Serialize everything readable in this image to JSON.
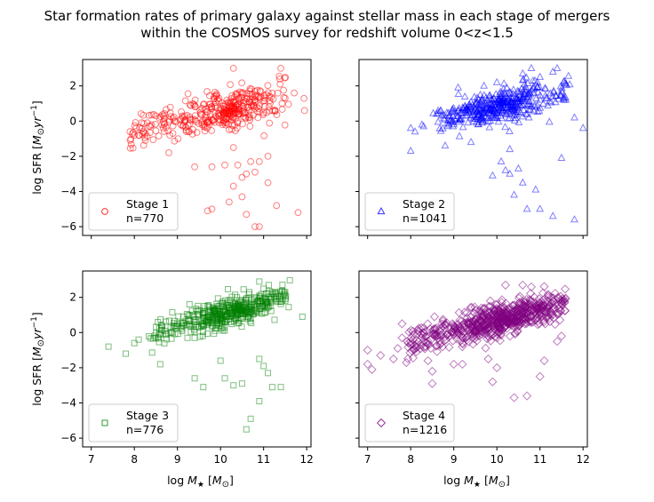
{
  "figure": {
    "title_line1": "Star formation rates of primary galaxy against stellar mass in each stage of mergers",
    "title_line2": "within the COSMOS survey for redshift volume 0<z<1.5"
  },
  "chart_data": [
    {
      "type": "scatter",
      "marker": "circle",
      "color": "#ff0000",
      "legend": {
        "label": "Stage 1",
        "count": "n=770",
        "placement": "lower-left"
      },
      "ylabel": "log SFR [M⊙yr⁻¹]",
      "xlabel": "",
      "xlim": [
        6.8,
        12.1
      ],
      "ylim": [
        -6.5,
        3.5
      ],
      "xticks": [
        7,
        8,
        9,
        10,
        11,
        12
      ],
      "yticks": [
        2,
        0,
        -2,
        -4,
        -6
      ],
      "cloud": {
        "n": 380,
        "x_range": [
          7.9,
          11.5
        ],
        "y_at_x8": -0.6,
        "slope": 0.55,
        "x_center": 10.3,
        "spread": 0.9
      },
      "outliers": [
        [
          9.8,
          -5.0
        ],
        [
          9.7,
          -5.1
        ],
        [
          10.6,
          -5.3
        ],
        [
          10.8,
          -6.0
        ],
        [
          10.9,
          -6.0
        ],
        [
          11.3,
          -4.8
        ],
        [
          11.8,
          -5.2
        ],
        [
          10.2,
          -4.6
        ],
        [
          10.6,
          -3.0
        ],
        [
          10.8,
          -2.9
        ],
        [
          10.7,
          -2.3
        ],
        [
          10.3,
          -3.7
        ],
        [
          10.5,
          -3.2
        ],
        [
          9.4,
          -2.6
        ],
        [
          9.8,
          -2.6
        ],
        [
          10.4,
          -2.5
        ],
        [
          10.9,
          -2.3
        ],
        [
          11.1,
          -2.0
        ],
        [
          10.3,
          -1.5
        ],
        [
          10.1,
          -2.5
        ],
        [
          10.5,
          -4.3
        ],
        [
          10.3,
          3.0
        ],
        [
          11.4,
          3.0
        ],
        [
          8.8,
          -1.8
        ],
        [
          8.0,
          -0.8
        ],
        [
          7.9,
          -0.6
        ],
        [
          8.1,
          -0.8
        ],
        [
          8.3,
          -0.1
        ],
        [
          8.5,
          0.3
        ],
        [
          11.1,
          -3.5
        ]
      ]
    },
    {
      "type": "scatter",
      "marker": "triangle",
      "color": "#0000ff",
      "legend": {
        "label": "Stage 2",
        "count": "n=1041",
        "placement": "lower-left"
      },
      "ylabel": "",
      "xlabel": "",
      "xlim": [
        6.8,
        12.1
      ],
      "ylim": [
        -6.5,
        3.5
      ],
      "xticks": [
        7,
        8,
        9,
        10,
        11,
        12
      ],
      "yticks": [
        2,
        0,
        -2,
        -4,
        -6
      ],
      "cloud": {
        "n": 430,
        "x_range": [
          8.6,
          11.7
        ],
        "y_at_x8": -0.3,
        "slope": 0.55,
        "x_center": 10.0,
        "spread": 0.8
      },
      "outliers": [
        [
          8.0,
          -0.4
        ],
        [
          8.1,
          -0.6
        ],
        [
          8.3,
          -0.3
        ],
        [
          8.6,
          0.4
        ],
        [
          8.7,
          0.6
        ],
        [
          8.0,
          -1.7
        ],
        [
          8.8,
          -1.4
        ],
        [
          9.4,
          -1.2
        ],
        [
          10.1,
          -2.3
        ],
        [
          10.2,
          -2.8
        ],
        [
          10.3,
          -3.0
        ],
        [
          10.5,
          -2.7
        ],
        [
          10.6,
          -3.5
        ],
        [
          10.9,
          -3.9
        ],
        [
          10.7,
          -5.0
        ],
        [
          11.0,
          -5.0
        ],
        [
          11.3,
          -5.4
        ],
        [
          11.8,
          -5.6
        ],
        [
          10.4,
          -4.2
        ],
        [
          9.9,
          -3.1
        ],
        [
          11.5,
          -2.1
        ],
        [
          11.8,
          0.2
        ],
        [
          12.0,
          -0.4
        ],
        [
          11.6,
          1.2
        ],
        [
          11.4,
          3.0
        ],
        [
          11.3,
          2.8
        ],
        [
          10.8,
          3.0
        ],
        [
          10.6,
          2.7
        ],
        [
          11.0,
          2.5
        ],
        [
          9.1,
          1.9
        ],
        [
          9.7,
          2.0
        ],
        [
          10.0,
          2.2
        ],
        [
          10.3,
          -1.6
        ]
      ]
    },
    {
      "type": "scatter",
      "marker": "square",
      "color": "#008000",
      "legend": {
        "label": "Stage 3",
        "count": "n=776",
        "placement": "lower-left"
      },
      "ylabel": "log SFR [M⊙yr⁻¹]",
      "xlabel": "log M★ [M⊙]",
      "xlim": [
        6.8,
        12.1
      ],
      "ylim": [
        -6.5,
        3.5
      ],
      "xticks": [
        7,
        8,
        9,
        10,
        11,
        12
      ],
      "yticks": [
        2,
        0,
        -2,
        -4,
        -6
      ],
      "cloud": {
        "n": 450,
        "x_range": [
          8.3,
          11.6
        ],
        "y_at_x8": -0.3,
        "slope": 0.65,
        "x_center": 10.2,
        "spread": 0.7
      },
      "outliers": [
        [
          7.4,
          -0.8
        ],
        [
          7.8,
          -1.2
        ],
        [
          8.0,
          -0.6
        ],
        [
          8.1,
          -0.4
        ],
        [
          8.6,
          -1.8
        ],
        [
          9.4,
          -2.6
        ],
        [
          9.6,
          -3.1
        ],
        [
          10.1,
          -2.6
        ],
        [
          10.3,
          -3.0
        ],
        [
          10.5,
          -2.9
        ],
        [
          10.7,
          -4.9
        ],
        [
          10.6,
          -5.5
        ],
        [
          10.9,
          -3.9
        ],
        [
          11.1,
          -2.3
        ],
        [
          11.2,
          -3.1
        ],
        [
          11.4,
          -3.1
        ],
        [
          10.9,
          -1.5
        ],
        [
          11.0,
          -1.9
        ],
        [
          11.9,
          0.9
        ],
        [
          11.5,
          2.3
        ],
        [
          11.2,
          2.3
        ],
        [
          10.9,
          2.9
        ],
        [
          9.4,
          -0.3
        ],
        [
          10.0,
          -1.6
        ]
      ]
    },
    {
      "type": "scatter",
      "marker": "diamond",
      "color": "#800080",
      "legend": {
        "label": "Stage 4",
        "count": "n=1216",
        "placement": "lower-left"
      },
      "ylabel": "",
      "xlabel": "log M★ [M⊙]",
      "xlim": [
        6.8,
        12.1
      ],
      "ylim": [
        -6.5,
        3.5
      ],
      "xticks": [
        7,
        8,
        9,
        10,
        11,
        12
      ],
      "yticks": [
        2,
        0,
        -2,
        -4,
        -6
      ],
      "cloud": {
        "n": 700,
        "x_range": [
          7.9,
          11.6
        ],
        "y_at_x8": -0.5,
        "slope": 0.6,
        "x_center": 10.1,
        "spread": 0.75
      },
      "outliers": [
        [
          7.0,
          -1.0
        ],
        [
          7.0,
          -1.8
        ],
        [
          7.1,
          -2.1
        ],
        [
          7.3,
          -1.3
        ],
        [
          7.6,
          -1.5
        ],
        [
          7.7,
          -0.9
        ],
        [
          7.8,
          -0.3
        ],
        [
          7.8,
          0.5
        ],
        [
          7.9,
          -1.7
        ],
        [
          8.0,
          -0.5
        ],
        [
          8.5,
          -2.2
        ],
        [
          8.4,
          -1.6
        ],
        [
          8.5,
          -2.9
        ],
        [
          9.0,
          -1.8
        ],
        [
          9.2,
          -1.8
        ],
        [
          9.8,
          -1.5
        ],
        [
          10.0,
          -2.0
        ],
        [
          10.4,
          -3.7
        ],
        [
          10.7,
          -3.6
        ],
        [
          11.0,
          -2.5
        ],
        [
          11.1,
          -1.6
        ],
        [
          11.4,
          -0.5
        ],
        [
          11.5,
          -0.2
        ],
        [
          9.9,
          -2.8
        ],
        [
          10.6,
          2.7
        ],
        [
          10.2,
          2.7
        ],
        [
          10.8,
          2.6
        ],
        [
          11.2,
          2.0
        ]
      ]
    }
  ]
}
